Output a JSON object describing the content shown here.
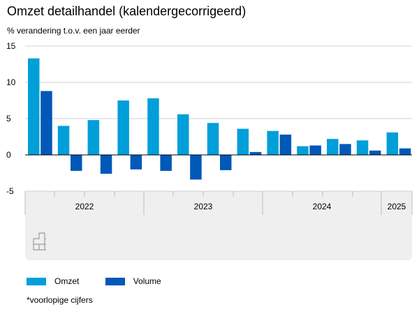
{
  "chart_data": {
    "type": "bar",
    "title": "Omzet detailhandel (kalendergecorrigeerd)",
    "subtitle": "% verandering t.o.v. een jaar eerder",
    "ylim": [
      -5,
      15
    ],
    "yticks": [
      -5,
      0,
      5,
      10,
      15
    ],
    "grid": true,
    "groups": [
      {
        "label": "2022",
        "start": 0,
        "end": 4
      },
      {
        "label": "2023",
        "start": 4,
        "end": 8
      },
      {
        "label": "2024",
        "start": 8,
        "end": 12
      },
      {
        "label": "2025",
        "start": 12,
        "end": 13
      }
    ],
    "series": [
      {
        "name": "Omzet",
        "color": "#009fd9",
        "values": [
          13.3,
          4.0,
          4.8,
          7.5,
          7.8,
          5.6,
          4.4,
          3.6,
          3.3,
          1.2,
          2.2,
          2.0,
          3.1
        ]
      },
      {
        "name": "Volume",
        "color": "#0058b8",
        "values": [
          8.8,
          -2.2,
          -2.6,
          -2.0,
          -2.2,
          -3.4,
          -2.1,
          0.4,
          2.8,
          1.3,
          1.5,
          0.6,
          0.9
        ]
      }
    ],
    "legend_position": "bottom-left",
    "footnote": "*voorlopige cijfers"
  }
}
